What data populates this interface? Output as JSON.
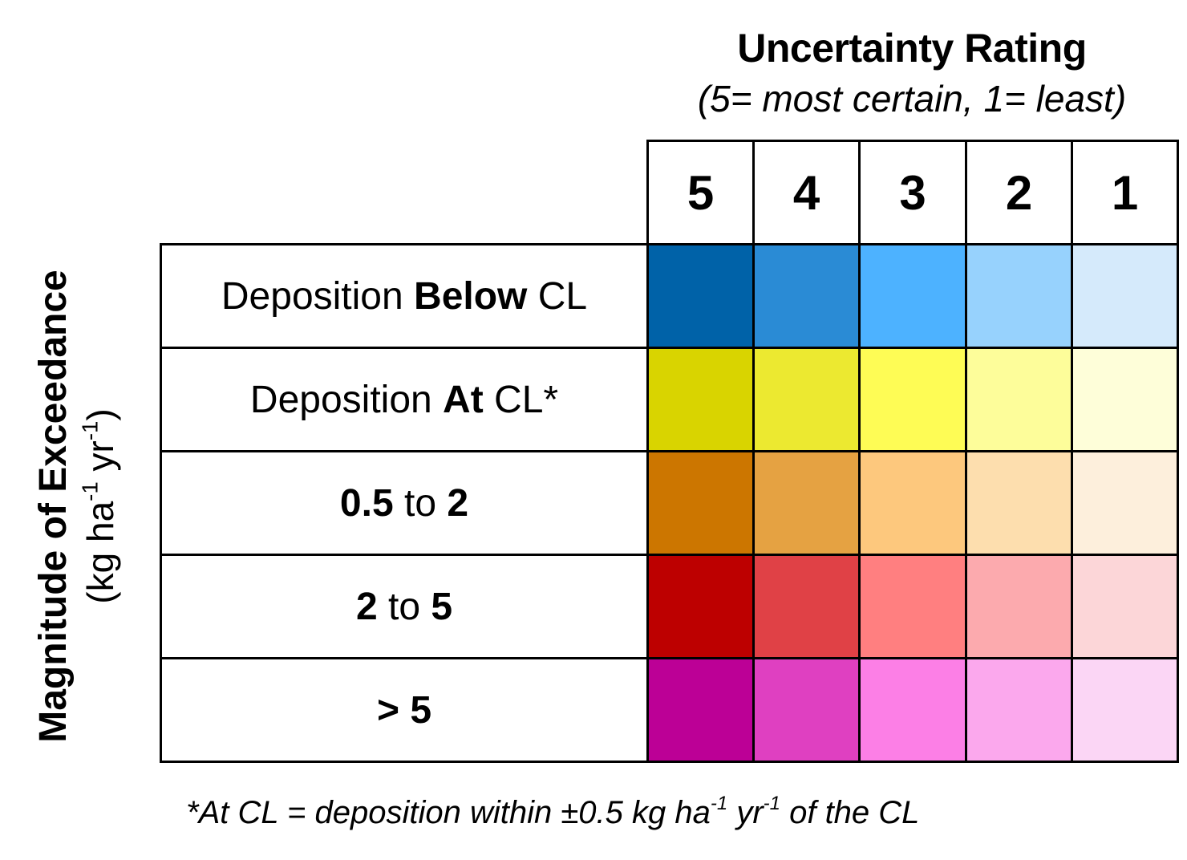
{
  "title": "Uncertainty Rating",
  "subtitle": "(5= most certain, 1= least)",
  "column_headers": [
    "5",
    "4",
    "3",
    "2",
    "1"
  ],
  "rows": [
    {
      "label_parts": [
        {
          "text": "Deposition ",
          "bold": false
        },
        {
          "text": "Below",
          "bold": true
        },
        {
          "text": " CL",
          "bold": false
        }
      ],
      "colors": [
        "#0062a8",
        "#2a8bd5",
        "#4db2ff",
        "#97d2fd",
        "#d5eafb"
      ]
    },
    {
      "label_parts": [
        {
          "text": "Deposition ",
          "bold": false
        },
        {
          "text": "At",
          "bold": true
        },
        {
          "text": " CL*",
          "bold": false
        }
      ],
      "colors": [
        "#d9d400",
        "#ece930",
        "#fefc55",
        "#fdfd9a",
        "#fefed9"
      ]
    },
    {
      "label_parts": [
        {
          "text": "0.5",
          "bold": true
        },
        {
          "text": " to ",
          "bold": false
        },
        {
          "text": "2",
          "bold": true
        }
      ],
      "colors": [
        "#cc7600",
        "#e5a242",
        "#fdc87d",
        "#fddeae",
        "#fdefdc"
      ]
    },
    {
      "label_parts": [
        {
          "text": "2",
          "bold": true
        },
        {
          "text": " to ",
          "bold": false
        },
        {
          "text": "5",
          "bold": true
        }
      ],
      "colors": [
        "#bd0000",
        "#e04146",
        "#ff7f80",
        "#fcaaae",
        "#fcd6d8"
      ]
    },
    {
      "label_parts": [
        {
          "text": "> 5",
          "bold": true
        }
      ],
      "colors": [
        "#bc0096",
        "#df40c1",
        "#fc7fe6",
        "#fba8ed",
        "#fbd6f5"
      ]
    }
  ],
  "y_axis": {
    "title": "Magnitude of Exceedance",
    "unit_parts": [
      "(kg ha",
      "-1",
      " yr",
      "-1",
      ")"
    ]
  },
  "footnote_parts": [
    "*At CL = deposition within ±0.5 kg ha",
    "-1",
    " yr",
    "-1",
    " of the CL"
  ]
}
